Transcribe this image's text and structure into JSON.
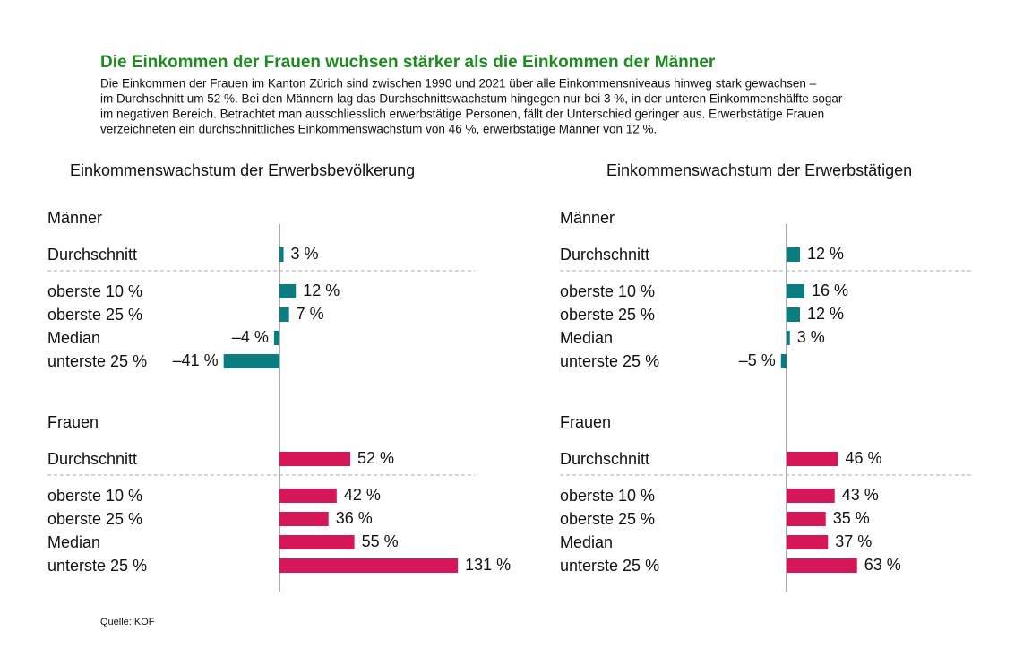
{
  "title": "Die Einkommen der Frauen wuchsen stärker als die Einkommen der Männer",
  "description": [
    "Die Einkommen der Frauen im Kanton Zürich sind zwischen 1990 und 2021 über alle Einkommensniveaus hinweg stark gewachsen –",
    "im Durchschnitt um 52 %. Bei den Männern lag das Durchschnittswachstum hingegen nur bei 3 %, in der unteren Einkommenshälfte sogar",
    "im negativen Bereich. Betrachtet man ausschliesslich erwerbstätige Personen, fällt der Unterschied geringer aus. Erwerbstätige Frauen",
    "verzeichneten ein durchschnittliches Einkommenswachstum von 46 %, erwerbstätige Männer von 12 %."
  ],
  "source": "Quelle: KOF",
  "chart_data": [
    {
      "type": "bar",
      "title": "Einkommenswachstum der Erwerbsbevölkerung",
      "categories": [
        "Durchschnitt",
        "oberste 10 %",
        "oberste 25 %",
        "Median",
        "unterste 25 %"
      ],
      "series": [
        {
          "name": "Männer",
          "color": "#0b7c80",
          "values": [
            3,
            12,
            7,
            -4,
            -41
          ],
          "value_labels": [
            "3 %",
            "12 %",
            "7 %",
            "–4 %",
            "–41 %"
          ]
        },
        {
          "name": "Frauen",
          "color": "#d5175a",
          "values": [
            52,
            42,
            36,
            55,
            131
          ],
          "value_labels": [
            "52 %",
            "42 %",
            "36 %",
            "55 %",
            "131 %"
          ]
        }
      ]
    },
    {
      "type": "bar",
      "title": "Einkommenswachstum der Erwerbstätigen",
      "categories": [
        "Durchschnitt",
        "oberste 10 %",
        "oberste 25 %",
        "Median",
        "unterste 25 %"
      ],
      "series": [
        {
          "name": "Männer",
          "color": "#0b7c80",
          "values": [
            12,
            16,
            12,
            3,
            -5
          ],
          "value_labels": [
            "12 %",
            "16 %",
            "12 %",
            "3 %",
            "–5 %"
          ]
        },
        {
          "name": "Frauen",
          "color": "#d5175a",
          "values": [
            46,
            43,
            35,
            37,
            63
          ],
          "value_labels": [
            "46 %",
            "43 %",
            "35 %",
            "37 %",
            "63 %"
          ]
        }
      ]
    }
  ]
}
